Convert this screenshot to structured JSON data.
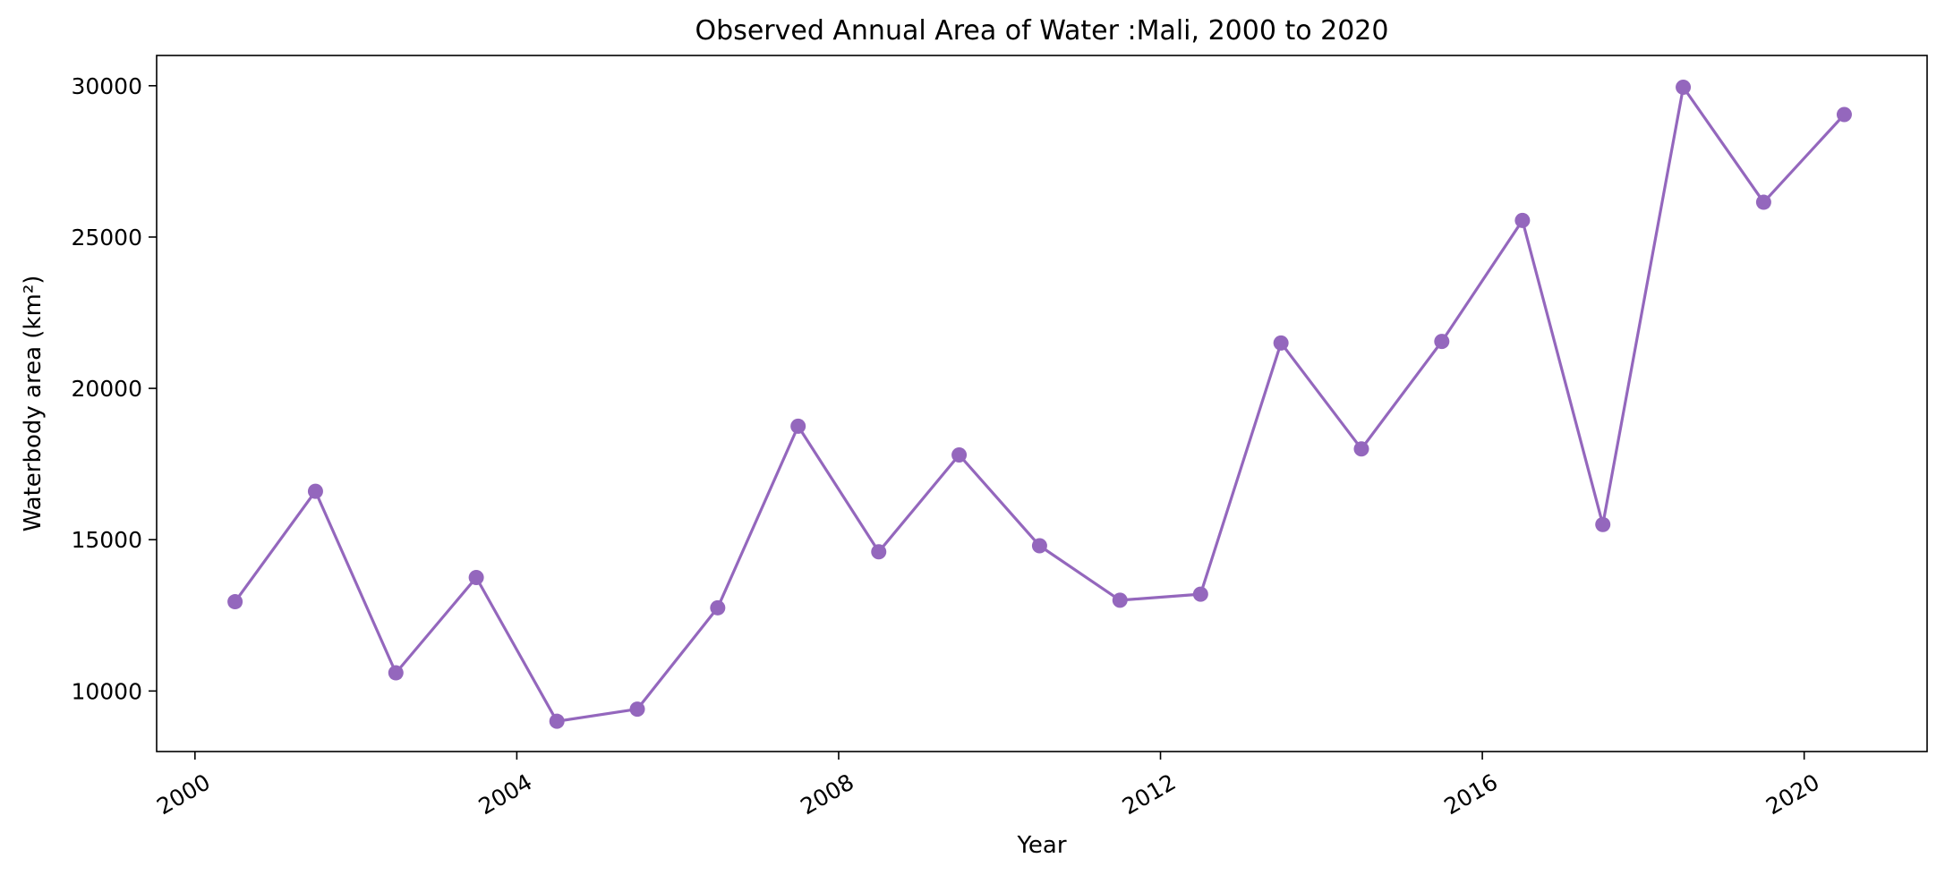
{
  "chart_data": {
    "type": "line",
    "title": "Observed Annual Area of Water :Mali, 2000 to 2020",
    "xlabel": "Year",
    "ylabel": "Waterbody area (km²)",
    "x_tick_labels": [
      "2000",
      "2004",
      "2008",
      "2012",
      "2016",
      "2020"
    ],
    "x_ticks": [
      "2000-01-01",
      "2004-01-01",
      "2008-01-01",
      "2012-01-01",
      "2016-01-01",
      "2020-01-01"
    ],
    "y_ticks": [
      10000,
      15000,
      20000,
      25000,
      30000
    ],
    "y_tick_labels": [
      "10000",
      "15000",
      "20000",
      "25000",
      "30000"
    ],
    "xlim": [
      "1999-07-11",
      "2021-07-12"
    ],
    "ylim": [
      8000,
      31000
    ],
    "grid": false,
    "colors": {
      "series": "#9467bd"
    },
    "series": [
      {
        "x": [
          "2000-07-01",
          "2001-07-01",
          "2002-07-01",
          "2003-07-01",
          "2004-07-01",
          "2005-07-01",
          "2006-07-01",
          "2007-07-01",
          "2008-07-01",
          "2009-07-01",
          "2010-07-01",
          "2011-07-01",
          "2012-07-01",
          "2013-07-01",
          "2014-07-01",
          "2015-07-01",
          "2016-07-01",
          "2017-07-01",
          "2018-07-01",
          "2019-07-01",
          "2020-07-01"
        ],
        "values": [
          12950,
          16600,
          10600,
          13750,
          9000,
          9400,
          12750,
          18750,
          14600,
          17800,
          14800,
          13000,
          13200,
          21500,
          18000,
          21550,
          25550,
          15500,
          29950,
          26150,
          29050
        ]
      }
    ]
  }
}
